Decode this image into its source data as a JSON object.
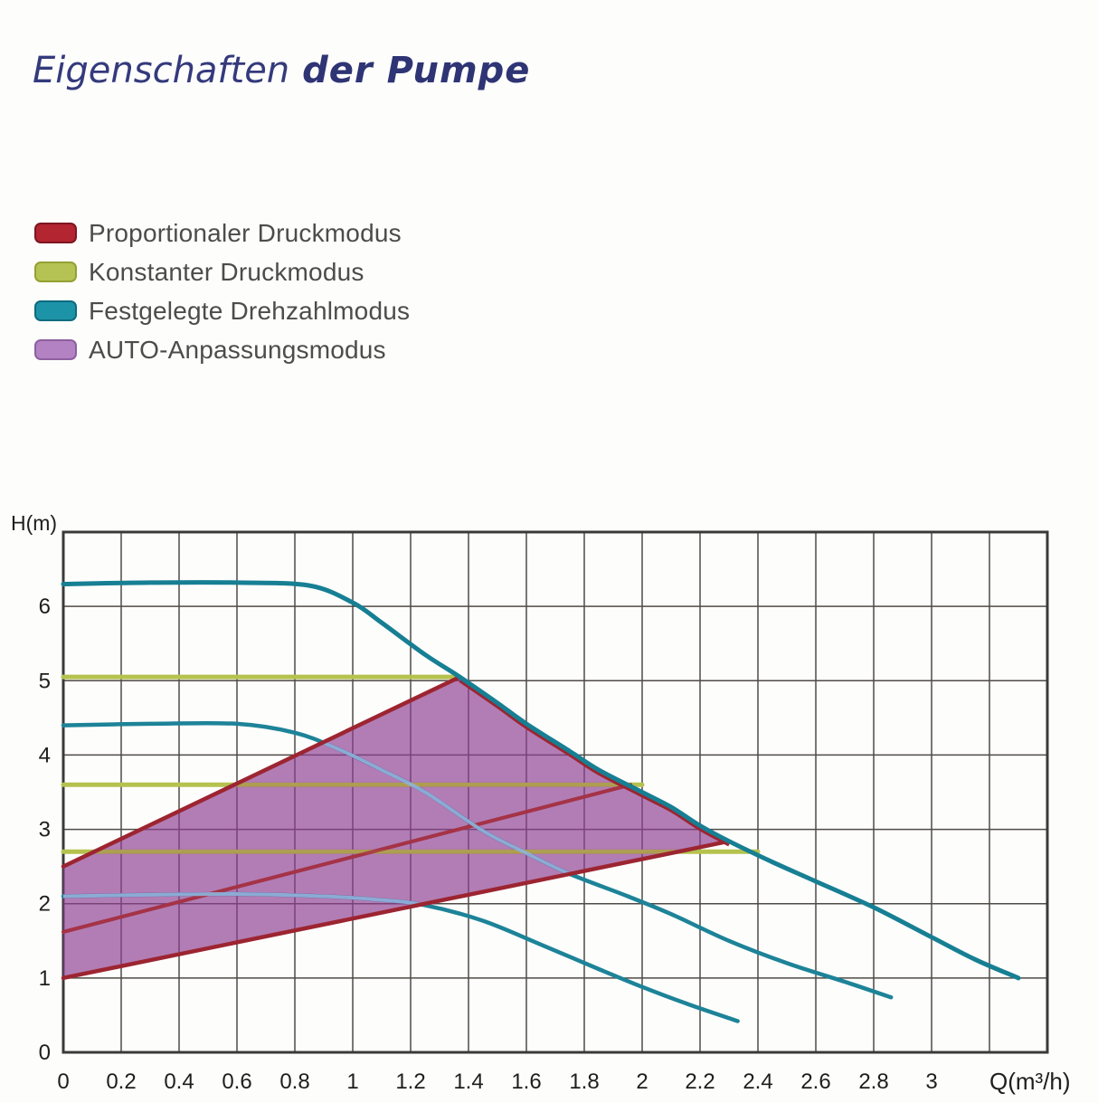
{
  "title": {
    "regular": "Eigenschaften",
    "bold": "der Pumpe"
  },
  "colors": {
    "title": "#343a7c",
    "legend_text": "#4c4c4c",
    "background": "#fdfdfc",
    "grid": "#4f4b46",
    "axis_text": "#1e1e1e"
  },
  "legend": {
    "items": [
      {
        "label": "Proportionaler Druckmodus",
        "color": "#b22531",
        "border": "#7e1620"
      },
      {
        "label": "Konstanter Druckmodus",
        "color": "#b5c254",
        "border": "#93a132"
      },
      {
        "label": "Festgelegte Drehzahlmodus",
        "color": "#1d93a8",
        "border": "#0f6b7e"
      },
      {
        "label": "AUTO-Anpassungsmodus",
        "color": "#b382c3",
        "border": "#8e5fa0"
      }
    ]
  },
  "chart_data": {
    "type": "line",
    "title": "",
    "xlabel": "Q(m³/h)",
    "ylabel": "H(m)",
    "x_range": [
      0,
      3.4
    ],
    "y_range": [
      0,
      7
    ],
    "x_grid_step": 0.2,
    "y_grid_step": 1,
    "grid": true,
    "legend_position": "top-left",
    "x_ticks": {
      "values": [
        0,
        0.2,
        0.4,
        0.6,
        0.8,
        1,
        1.2,
        1.4,
        1.6,
        1.8,
        2,
        2.2,
        2.4,
        2.6,
        2.8,
        3
      ],
      "labels": [
        "0",
        "0.2",
        "0.4",
        "0.6",
        "0.8",
        "1",
        "1.2",
        "1.4",
        "1.6",
        "1.8",
        "2",
        "2.2",
        "2.4",
        "2.6",
        "2.8",
        "3"
      ]
    },
    "y_ticks": {
      "values": [
        0,
        1,
        2,
        3,
        4,
        5,
        6
      ],
      "labels": [
        "0",
        "1",
        "2",
        "3",
        "4",
        "5",
        "6"
      ]
    },
    "series": [
      {
        "name": "Festgelegte Drehzahlmodus",
        "level": "Drehzahl III",
        "type": "curve",
        "color": "#177f93",
        "points": [
          [
            0,
            6.3
          ],
          [
            0.3,
            6.32
          ],
          [
            0.6,
            6.32
          ],
          [
            0.85,
            6.28
          ],
          [
            1.0,
            6.05
          ],
          [
            1.1,
            5.78
          ],
          [
            1.25,
            5.35
          ],
          [
            1.37,
            5.05
          ],
          [
            1.5,
            4.7
          ],
          [
            1.6,
            4.42
          ],
          [
            1.75,
            4.05
          ],
          [
            1.85,
            3.8
          ],
          [
            2.0,
            3.5
          ],
          [
            2.1,
            3.3
          ],
          [
            2.2,
            3.05
          ],
          [
            2.3,
            2.84
          ],
          [
            2.45,
            2.56
          ],
          [
            2.6,
            2.3
          ],
          [
            2.8,
            1.95
          ],
          [
            3.0,
            1.55
          ],
          [
            3.15,
            1.25
          ],
          [
            3.3,
            1.0
          ]
        ]
      },
      {
        "name": "Festgelegte Drehzahlmodus",
        "level": "Drehzahl II",
        "type": "curve",
        "color": "#1d8398",
        "points": [
          [
            0,
            4.4
          ],
          [
            0.3,
            4.42
          ],
          [
            0.6,
            4.42
          ],
          [
            0.8,
            4.3
          ],
          [
            0.95,
            4.08
          ],
          [
            1.1,
            3.8
          ],
          [
            1.25,
            3.5
          ],
          [
            1.45,
            2.98
          ],
          [
            1.6,
            2.68
          ],
          [
            1.75,
            2.4
          ],
          [
            1.95,
            2.1
          ],
          [
            2.1,
            1.86
          ],
          [
            2.3,
            1.5
          ],
          [
            2.5,
            1.2
          ],
          [
            2.7,
            0.95
          ],
          [
            2.86,
            0.74
          ]
        ]
      },
      {
        "name": "Festgelegte Drehzahlmodus",
        "level": "Drehzahl I",
        "type": "curve",
        "color": "#1d8398",
        "points": [
          [
            0,
            2.1
          ],
          [
            0.3,
            2.12
          ],
          [
            0.6,
            2.13
          ],
          [
            0.9,
            2.1
          ],
          [
            1.1,
            2.05
          ],
          [
            1.25,
            1.98
          ],
          [
            1.45,
            1.77
          ],
          [
            1.65,
            1.45
          ],
          [
            1.85,
            1.12
          ],
          [
            2.0,
            0.88
          ],
          [
            2.15,
            0.66
          ],
          [
            2.33,
            0.42
          ]
        ]
      },
      {
        "name": "Konstanter Druckmodus",
        "level": "III",
        "type": "hline",
        "color": "#b5c24e",
        "h": 5.05,
        "q_start": 0,
        "q_end": 1.37
      },
      {
        "name": "Konstanter Druckmodus",
        "level": "II",
        "type": "hline",
        "color": "#b5c24e",
        "h": 3.6,
        "q_start": 0,
        "q_end": 2.0
      },
      {
        "name": "Konstanter Druckmodus",
        "level": "I",
        "type": "hline",
        "color": "#b5c24e",
        "h": 2.7,
        "q_start": 0,
        "q_end": 2.4
      },
      {
        "name": "Proportionaler Druckmodus",
        "level": "max",
        "type": "line",
        "color": "#9c2531",
        "from": [
          0,
          2.5
        ],
        "to": [
          1.37,
          5.05
        ]
      },
      {
        "name": "Proportionaler Druckmodus",
        "level": "mid",
        "type": "line",
        "color": "#a3333c",
        "from": [
          0,
          1.62
        ],
        "to": [
          1.96,
          3.6
        ]
      },
      {
        "name": "Proportionaler Druckmodus",
        "level": "min",
        "type": "line",
        "color": "#9c2531",
        "from": [
          0,
          1.0
        ],
        "to": [
          2.3,
          2.84
        ]
      }
    ],
    "auto_region": {
      "name": "AUTO-Anpassungsmodus",
      "fill": "#8e3f92",
      "opacity": 0.68,
      "points": [
        [
          0,
          1.0
        ],
        [
          0,
          2.5
        ],
        [
          1.37,
          5.05
        ],
        [
          1.5,
          4.7
        ],
        [
          1.6,
          4.42
        ],
        [
          1.75,
          4.05
        ],
        [
          1.85,
          3.8
        ],
        [
          2.0,
          3.5
        ],
        [
          2.1,
          3.3
        ],
        [
          2.2,
          3.05
        ],
        [
          2.3,
          2.84
        ]
      ]
    }
  }
}
